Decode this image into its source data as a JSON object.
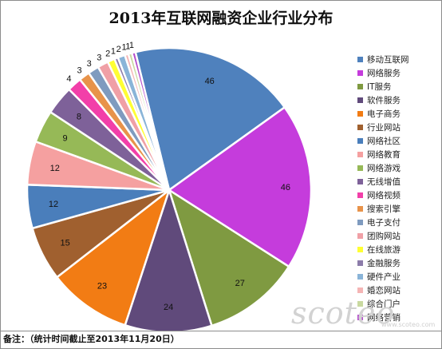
{
  "chart_data": {
    "type": "pie",
    "title": "2013年互联网融资企业行业分布",
    "categories": [
      "移动互联网",
      "网络服务",
      "IT服务",
      "软件服务",
      "电子商务",
      "行业网站",
      "网络社区",
      "网络教育",
      "网络游戏",
      "无线增值",
      "网络视频",
      "搜索引擎",
      "电子支付",
      "团购网站",
      "在线旅游",
      "金融服务",
      "硬件产业",
      "婚恋网站",
      "综合门户",
      "网络营销"
    ],
    "values": [
      46,
      46,
      27,
      24,
      23,
      15,
      12,
      12,
      9,
      8,
      4,
      3,
      3,
      3,
      2,
      1,
      2,
      1,
      1,
      1
    ],
    "colors": [
      "#4f81bd",
      "#c53cdc",
      "#7f9a41",
      "#604a7b",
      "#f27c14",
      "#a0602f",
      "#4a7ebb",
      "#f5a0a0",
      "#96b957",
      "#7e6199",
      "#f23fa9",
      "#e8934a",
      "#7f9bbf",
      "#f0a0a6",
      "#ffff33",
      "#8c7caa",
      "#8ab4d8",
      "#f5b5b5",
      "#c9d9a0",
      "#b44ccc"
    ],
    "value_labels": [
      "46",
      "46",
      "27",
      "24",
      "23",
      "15",
      "12",
      "12",
      "9",
      "8",
      "4",
      "3",
      "3",
      "3",
      "2",
      "1",
      "2",
      "1",
      "1",
      "1"
    ],
    "legend_position": "right"
  },
  "footnote": "备注：（统计时间截止至2013年11月20日）",
  "watermark": "scoteo",
  "watermark_url": "www.scoteo.com"
}
